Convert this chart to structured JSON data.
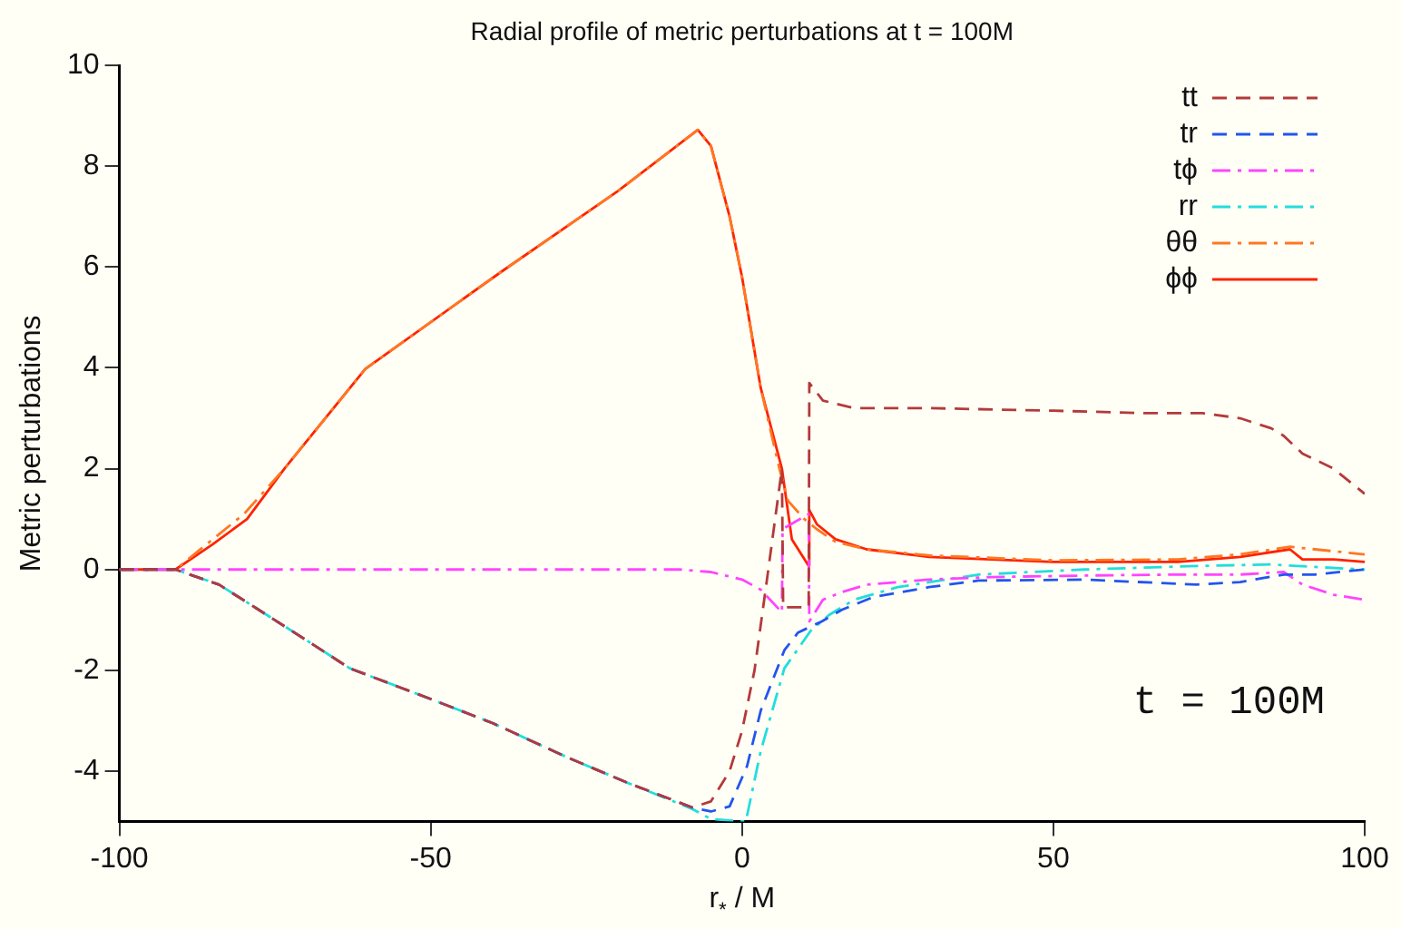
{
  "chart_data": {
    "type": "line",
    "title": "Radial profile of metric perturbations at t = 100M",
    "xlabel": "r$_{*}$ / M",
    "ylabel": "Metric perturbations",
    "annotations": [
      "t = 100M"
    ],
    "xlim": [
      -100,
      100
    ],
    "xticks": [
      -100,
      -50,
      0,
      50,
      100
    ],
    "ylim": [
      -5,
      10
    ],
    "yticks": [
      -4,
      -2,
      0,
      2,
      4,
      6,
      8,
      10
    ],
    "grid": false,
    "legend": "top right",
    "marker": "none",
    "series": [
      {
        "name": "tt",
        "color": "#b33a3a",
        "line_style": "dashed",
        "x": [
          -100,
          -91,
          -84,
          -78,
          -70,
          -63,
          -50,
          -40,
          -28,
          -18,
          -8,
          -5,
          -2,
          0,
          2,
          4,
          6.4,
          6.6,
          10.7,
          10.8,
          13,
          18,
          30,
          50,
          65,
          74,
          80,
          85,
          87,
          90,
          95,
          100
        ],
        "values": [
          0,
          0,
          -0.3,
          -0.77,
          -1.4,
          -1.96,
          -2.57,
          -3.05,
          -3.73,
          -4.25,
          -4.72,
          -4.6,
          -4.0,
          -3.2,
          -2.0,
          -0.2,
          2.0,
          -0.75,
          -0.75,
          3.7,
          3.35,
          3.2,
          3.2,
          3.15,
          3.1,
          3.1,
          3.0,
          2.8,
          2.65,
          2.3,
          2.0,
          1.5
        ]
      },
      {
        "name": "tr",
        "color": "#2255ee",
        "line_style": "dashed",
        "x": [
          -100,
          -91,
          -84,
          -78,
          -70,
          -63,
          -50,
          -40,
          -28,
          -18,
          -8,
          -5,
          -2,
          0.8,
          3,
          6.8,
          9,
          12.8,
          16,
          21,
          30,
          38,
          55,
          73,
          80,
          87,
          92,
          100
        ],
        "values": [
          0,
          0,
          -0.3,
          -0.77,
          -1.4,
          -1.96,
          -2.57,
          -3.05,
          -3.73,
          -4.25,
          -4.72,
          -4.8,
          -4.7,
          -3.9,
          -2.8,
          -1.6,
          -1.25,
          -1.03,
          -0.8,
          -0.55,
          -0.35,
          -0.22,
          -0.2,
          -0.3,
          -0.25,
          -0.1,
          -0.1,
          0
        ]
      },
      {
        "name": "tϕ",
        "color": "#ff44ff",
        "line_style": "dashdot",
        "x": [
          -100,
          -10,
          -5,
          0,
          3,
          6.4,
          6.5,
          10.7,
          10.8,
          13,
          16,
          20,
          30,
          40,
          55,
          70,
          80,
          87,
          90,
          95,
          100
        ],
        "values": [
          0,
          0,
          -0.05,
          -0.2,
          -0.4,
          -0.85,
          0.8,
          1.1,
          -1.03,
          -0.6,
          -0.45,
          -0.3,
          -0.2,
          -0.15,
          -0.12,
          -0.1,
          -0.1,
          -0.05,
          -0.3,
          -0.5,
          -0.6
        ]
      },
      {
        "name": "rr",
        "color": "#22dddd",
        "line_style": "dashdot",
        "x": [
          -100,
          -91,
          -84,
          -78,
          -70,
          -63,
          -50,
          -40,
          -28,
          -18,
          -8,
          -5,
          0.6,
          3,
          6.8,
          11,
          14,
          18,
          25,
          38,
          55,
          73,
          85,
          92,
          100
        ],
        "values": [
          0,
          0,
          -0.3,
          -0.77,
          -1.4,
          -1.96,
          -2.57,
          -3.05,
          -3.73,
          -4.25,
          -4.75,
          -4.95,
          -5,
          -3.6,
          -1.96,
          -1.22,
          -0.9,
          -0.6,
          -0.35,
          -0.1,
          0,
          0.07,
          0.1,
          0.05,
          0
        ]
      },
      {
        "name": "θθ",
        "color": "#ff7722",
        "line_style": "dashdot",
        "x": [
          -100,
          -91,
          -88,
          -85,
          -80,
          -73.5,
          -60.5,
          -38.5,
          -20,
          -7.1,
          -5,
          -2,
          0,
          3,
          6,
          7.4,
          10,
          12,
          15,
          20,
          30,
          50,
          70,
          80,
          88,
          92,
          100
        ],
        "values": [
          0,
          0,
          0.3,
          0.6,
          1.1,
          2.0,
          3.98,
          5.92,
          7.5,
          8.72,
          8.4,
          7.0,
          5.8,
          3.6,
          2.0,
          1.36,
          1.0,
          0.8,
          0.55,
          0.4,
          0.28,
          0.18,
          0.2,
          0.3,
          0.45,
          0.4,
          0.3
        ]
      },
      {
        "name": "ϕϕ",
        "color": "#ff2200",
        "line_style": "solid",
        "x": [
          -100,
          -91,
          -88,
          -85,
          -79.5,
          -73.5,
          -60.5,
          -38.5,
          -20,
          -7.1,
          -5,
          -2,
          0,
          3,
          6.4,
          8,
          10.7,
          10.8,
          12,
          15,
          20,
          30,
          50,
          70,
          80,
          88,
          90,
          95,
          100
        ],
        "values": [
          0,
          0,
          0.25,
          0.5,
          1.0,
          2.0,
          3.98,
          5.92,
          7.5,
          8.72,
          8.4,
          7.0,
          5.8,
          3.6,
          2.0,
          0.6,
          0.07,
          1.18,
          0.9,
          0.6,
          0.4,
          0.25,
          0.15,
          0.15,
          0.25,
          0.4,
          0.2,
          0.2,
          0.15
        ]
      }
    ]
  }
}
